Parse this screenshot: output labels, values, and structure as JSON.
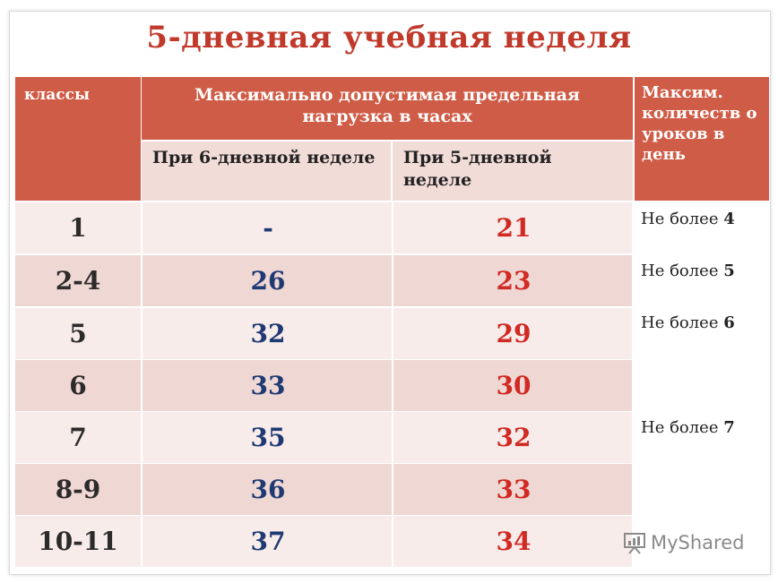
{
  "title": "5-дневная учебная неделя",
  "header": {
    "classes": "классы",
    "max_load": "Максимально допустимая предельная нагрузка в часах",
    "six_day": "При 6-дневной неделе",
    "five_day": "При 5-дневной неделе",
    "max_lessons": "Максим. количеств о уроков в день"
  },
  "rows": [
    {
      "grade": "1",
      "six": "-",
      "five": "21"
    },
    {
      "grade": "2-4",
      "six": "26",
      "five": "23"
    },
    {
      "grade": "5",
      "six": "32",
      "five": "29"
    },
    {
      "grade": "6",
      "six": "33",
      "five": "30"
    },
    {
      "grade": "7",
      "six": "35",
      "five": "32"
    },
    {
      "grade": "8-9",
      "six": "36",
      "five": "33"
    },
    {
      "grade": "10-11",
      "six": "37",
      "five": "34"
    }
  ],
  "notes": [
    {
      "prefix": "Не более",
      "value": "4"
    },
    {
      "prefix": "Не более",
      "value": "5"
    },
    {
      "prefix": "Не более",
      "value": "6"
    },
    {
      "prefix": "Не более",
      "value": "7"
    }
  ],
  "watermark": "MyShared",
  "colors": {
    "title": "#c0392b",
    "header": "#cf5c46",
    "six_day_values": "#1f3a73",
    "five_day_values": "#d02a22"
  }
}
